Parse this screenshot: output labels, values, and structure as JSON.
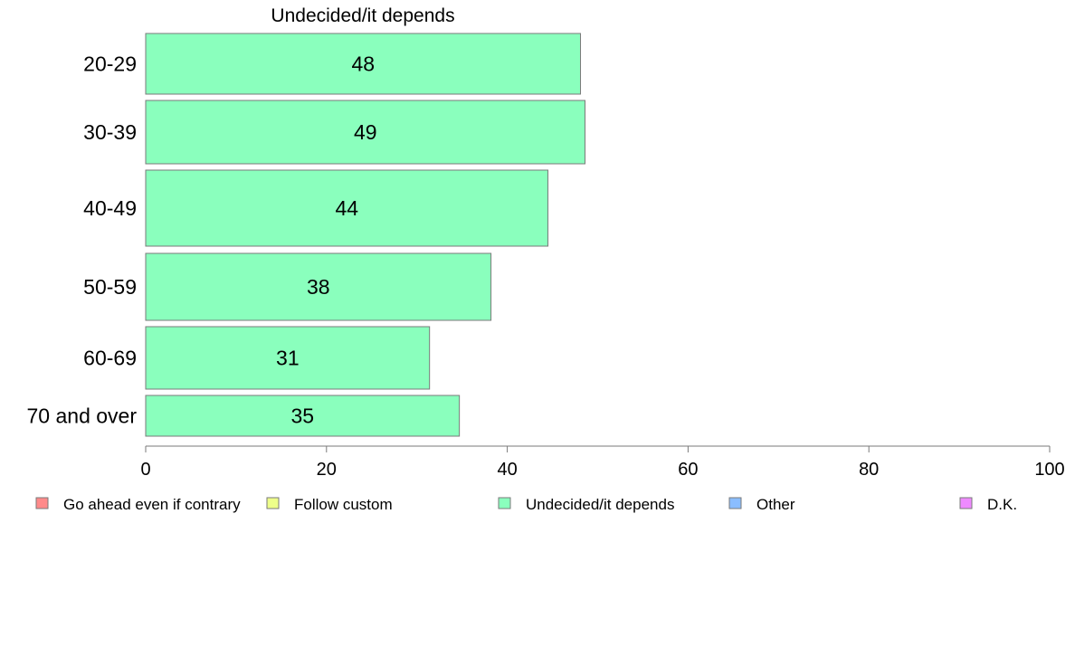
{
  "chart_data": {
    "type": "bar",
    "orientation": "horizontal",
    "title": "Undecided/it depends",
    "categories": [
      "20-29",
      "30-39",
      "40-49",
      "50-59",
      "60-69",
      "70 and over"
    ],
    "values": [
      48,
      49,
      44,
      38,
      31,
      35
    ],
    "bar_values": [
      48.1,
      48.6,
      44.5,
      38.2,
      31.4,
      34.7
    ],
    "xlim": [
      0,
      100
    ],
    "xticks": [
      0,
      20,
      40,
      60,
      80,
      100
    ],
    "xlabel": "",
    "ylabel": "",
    "grid": false,
    "bar_color": "#8affbd",
    "legend_placement": "bottom",
    "legend": [
      {
        "label": "Go ahead even if contrary",
        "color": "#ff8a8a"
      },
      {
        "label": "Follow custom",
        "color": "#eeff8a"
      },
      {
        "label": "Undecided/it depends",
        "color": "#8affbd"
      },
      {
        "label": "Other",
        "color": "#8abdff"
      },
      {
        "label": "D.K.",
        "color": "#ee8aff"
      }
    ]
  }
}
